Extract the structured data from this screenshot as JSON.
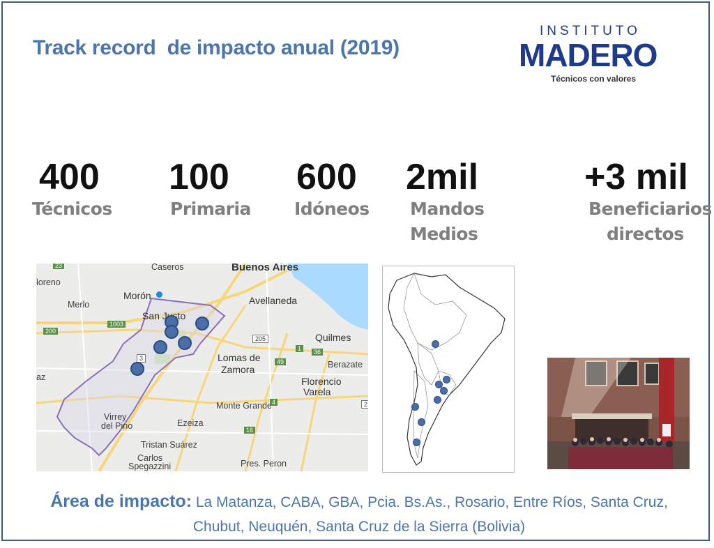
{
  "slide": {
    "title": "Track record  de impacto anual (2019)"
  },
  "logo": {
    "top": "INSTITUTO",
    "main": "MADERO",
    "tagline": "Técnicos con valores"
  },
  "stats": [
    {
      "value": "400",
      "label_lines": [
        "Técnicos"
      ]
    },
    {
      "value": "100",
      "label_lines": [
        "Primaria"
      ]
    },
    {
      "value": "600",
      "label_lines": [
        "Idóneos"
      ]
    },
    {
      "value": "2mil",
      "label_lines": [
        "Mandos",
        "Medios"
      ]
    },
    {
      "value": "+3 mil",
      "label_lines": [
        "Beneficiarios",
        "directos"
      ]
    }
  ],
  "city_map": {
    "labels": {
      "caseros": "Caseros",
      "buenos_aires": "Buenos Aires",
      "moreno": "loreno",
      "merlo": "Merlo",
      "moron": "Morón",
      "avellaneda": "Avellaneda",
      "san_justo": "San Justo",
      "quilmes": "Quilmes",
      "berazategui": "Berazate",
      "lomas": "Lomas de",
      "zamora": "Zamora",
      "florencio": "Florencio",
      "varela": "Varela",
      "monte_grande": "Monte Grande",
      "virrey": "Virrey",
      "del_pino": "del Pino",
      "ezeiza": "Ezeiza",
      "tristan": "Tristan Suárez",
      "carlos": "Carlos",
      "spegazzini": "Spegazzini",
      "pres_peron": "Pres. Peron",
      "az": "az"
    },
    "road_shields": [
      "23",
      "1003",
      "200",
      "205",
      "1",
      "36",
      "49",
      "4",
      "16",
      "3",
      "2"
    ]
  },
  "footer": {
    "lead": "Área de impacto:",
    "text": " La Matanza, CABA, GBA, Pcia. Bs.As., Rosario, Entre Ríos, Santa Cruz, Chubut, Neuquén, Santa Cruz de la Sierra (Bolivia)"
  },
  "colors": {
    "title": "#4a76ad",
    "logo": "#1f3a8a",
    "marker": "#4a6fa8",
    "label_gray": "#7f7f7f"
  }
}
